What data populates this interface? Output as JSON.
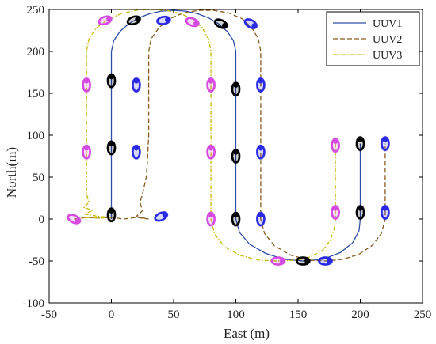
{
  "chart_data": {
    "type": "line",
    "xlabel": "East (m)",
    "ylabel": "North(m)",
    "xlim": [
      -50,
      250
    ],
    "ylim": [
      -100,
      250
    ],
    "xticks": [
      -50,
      0,
      50,
      100,
      150,
      200,
      250
    ],
    "yticks": [
      -100,
      -50,
      0,
      50,
      100,
      150,
      200,
      250
    ],
    "legend_position": "top-right",
    "series": [
      {
        "name": "UUV1",
        "color": "#2e4fa8",
        "dash": "solid",
        "points": [
          [
            0,
            0
          ],
          [
            0,
            200
          ],
          [
            2,
            213
          ],
          [
            7,
            224
          ],
          [
            14,
            233
          ],
          [
            22,
            240
          ],
          [
            31,
            245
          ],
          [
            40,
            248
          ],
          [
            50,
            249
          ],
          [
            60,
            248
          ],
          [
            69,
            245
          ],
          [
            78,
            240
          ],
          [
            86,
            233
          ],
          [
            93,
            224
          ],
          [
            98,
            213
          ],
          [
            100,
            200
          ],
          [
            100,
            0
          ],
          [
            103,
            -16
          ],
          [
            111,
            -30
          ],
          [
            124,
            -41
          ],
          [
            139,
            -48
          ],
          [
            154,
            -50
          ],
          [
            170,
            -48
          ],
          [
            184,
            -40
          ],
          [
            194,
            -28
          ],
          [
            199,
            -14
          ],
          [
            200,
            0
          ],
          [
            200,
            90
          ]
        ]
      },
      {
        "name": "UUV2",
        "color": "#8b5a1e",
        "dash": "dashed",
        "points": [
          [
            -30,
            0
          ],
          [
            -20,
            2
          ],
          [
            -10,
            1
          ],
          [
            0,
            2
          ],
          [
            10,
            0
          ],
          [
            20,
            2
          ],
          [
            30,
            0
          ],
          [
            20,
            3
          ],
          [
            25,
            10
          ],
          [
            23,
            20
          ],
          [
            25,
            30
          ],
          [
            28,
            50
          ],
          [
            29,
            70
          ],
          [
            30,
            100
          ],
          [
            30,
            200
          ],
          [
            32,
            215
          ],
          [
            38,
            228
          ],
          [
            47,
            239
          ],
          [
            58,
            246
          ],
          [
            70,
            249
          ],
          [
            82,
            249
          ],
          [
            94,
            246
          ],
          [
            105,
            239
          ],
          [
            113,
            228
          ],
          [
            118,
            215
          ],
          [
            120,
            200
          ],
          [
            120,
            0
          ],
          [
            123,
            -17
          ],
          [
            131,
            -32
          ],
          [
            144,
            -43
          ],
          [
            159,
            -49
          ],
          [
            172,
            -50
          ],
          [
            186,
            -48
          ],
          [
            199,
            -42
          ],
          [
            210,
            -31
          ],
          [
            217,
            -17
          ],
          [
            220,
            0
          ],
          [
            220,
            90
          ]
        ]
      },
      {
        "name": "UUV3",
        "color": "#c9b600",
        "dash": "dashdot",
        "points": [
          [
            -28,
            0
          ],
          [
            -18,
            2
          ],
          [
            -10,
            1
          ],
          [
            0,
            2
          ],
          [
            -10,
            3
          ],
          [
            -22,
            6
          ],
          [
            -15,
            10
          ],
          [
            -22,
            14
          ],
          [
            -18,
            20
          ],
          [
            -20,
            30
          ],
          [
            -20,
            60
          ],
          [
            -20,
            200
          ],
          [
            -18,
            215
          ],
          [
            -12,
            228
          ],
          [
            -3,
            238
          ],
          [
            8,
            245
          ],
          [
            20,
            249
          ],
          [
            32,
            250
          ],
          [
            44,
            249
          ],
          [
            56,
            245
          ],
          [
            66,
            238
          ],
          [
            73,
            228
          ],
          [
            78,
            215
          ],
          [
            80,
            200
          ],
          [
            80,
            0
          ],
          [
            83,
            -18
          ],
          [
            91,
            -33
          ],
          [
            103,
            -43
          ],
          [
            118,
            -49
          ],
          [
            134,
            -50
          ],
          [
            149,
            -49
          ],
          [
            160,
            -45
          ],
          [
            170,
            -37
          ],
          [
            176,
            -25
          ],
          [
            179,
            -12
          ],
          [
            180,
            0
          ],
          [
            180,
            90
          ]
        ]
      }
    ],
    "vehicles": [
      {
        "x": -30,
        "y": 0,
        "angle": -25,
        "color": "#d54ae0"
      },
      {
        "x": 0,
        "y": 5,
        "angle": 90,
        "color": "#000000"
      },
      {
        "x": 0,
        "y": 85,
        "angle": 90,
        "color": "#000000"
      },
      {
        "x": 0,
        "y": 165,
        "angle": 90,
        "color": "#000000"
      },
      {
        "x": -20,
        "y": 80,
        "angle": 90,
        "color": "#d54ae0"
      },
      {
        "x": -20,
        "y": 160,
        "angle": 90,
        "color": "#d54ae0"
      },
      {
        "x": 20,
        "y": 80,
        "angle": 90,
        "color": "#2a2ae6"
      },
      {
        "x": 20,
        "y": 160,
        "angle": 90,
        "color": "#2a2ae6"
      },
      {
        "x": 40,
        "y": 3,
        "angle": 25,
        "color": "#2a2ae6"
      },
      {
        "x": -5,
        "y": 237,
        "angle": 20,
        "color": "#d54ae0"
      },
      {
        "x": 18,
        "y": 237,
        "angle": 20,
        "color": "#000000"
      },
      {
        "x": 42,
        "y": 237,
        "angle": 10,
        "color": "#2a2ae6"
      },
      {
        "x": 65,
        "y": 235,
        "angle": -20,
        "color": "#d54ae0"
      },
      {
        "x": 88,
        "y": 233,
        "angle": -25,
        "color": "#000000"
      },
      {
        "x": 112,
        "y": 233,
        "angle": -30,
        "color": "#2a2ae6"
      },
      {
        "x": 80,
        "y": 160,
        "angle": 90,
        "color": "#d54ae0"
      },
      {
        "x": 80,
        "y": 80,
        "angle": 90,
        "color": "#d54ae0"
      },
      {
        "x": 80,
        "y": 0,
        "angle": 90,
        "color": "#d54ae0"
      },
      {
        "x": 100,
        "y": 155,
        "angle": 90,
        "color": "#000000"
      },
      {
        "x": 100,
        "y": 75,
        "angle": 90,
        "color": "#000000"
      },
      {
        "x": 100,
        "y": 0,
        "angle": 90,
        "color": "#000000"
      },
      {
        "x": 120,
        "y": 160,
        "angle": 90,
        "color": "#2a2ae6"
      },
      {
        "x": 120,
        "y": 80,
        "angle": 90,
        "color": "#2a2ae6"
      },
      {
        "x": 120,
        "y": 0,
        "angle": 90,
        "color": "#2a2ae6"
      },
      {
        "x": 134,
        "y": -50,
        "angle": 0,
        "color": "#d54ae0"
      },
      {
        "x": 154,
        "y": -50,
        "angle": 0,
        "color": "#000000"
      },
      {
        "x": 172,
        "y": -50,
        "angle": 0,
        "color": "#2a2ae6"
      },
      {
        "x": 180,
        "y": 88,
        "angle": 90,
        "color": "#d54ae0"
      },
      {
        "x": 180,
        "y": 8,
        "angle": 90,
        "color": "#d54ae0"
      },
      {
        "x": 200,
        "y": 90,
        "angle": 90,
        "color": "#000000"
      },
      {
        "x": 200,
        "y": 8,
        "angle": 90,
        "color": "#000000"
      },
      {
        "x": 220,
        "y": 90,
        "angle": 90,
        "color": "#2a2ae6"
      },
      {
        "x": 220,
        "y": 8,
        "angle": 90,
        "color": "#2a2ae6"
      }
    ]
  }
}
